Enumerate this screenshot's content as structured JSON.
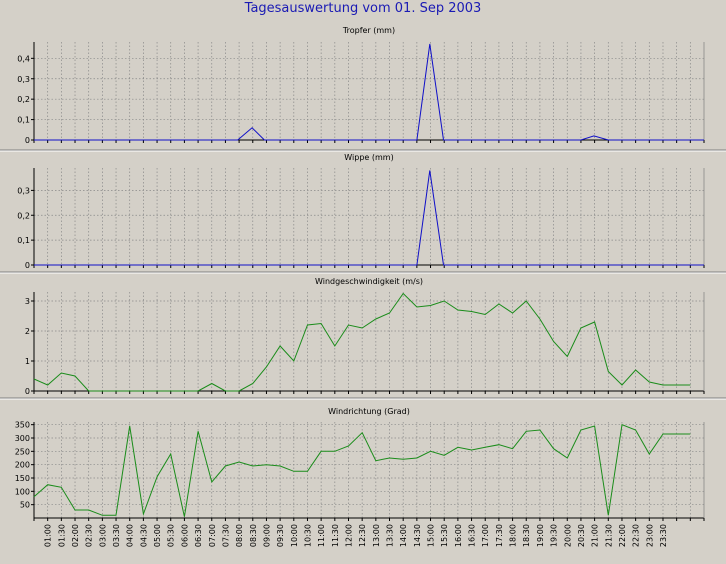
{
  "page": {
    "title": "Tagesauswertung vom 01. Sep 2003"
  },
  "colors": {
    "background": "#d4d0c8",
    "blue_series": "#1010c8",
    "green_series": "#1a8c1a",
    "grid": "#888888",
    "title": "#1a1ab4"
  },
  "x_labels": [
    "01:00",
    "01:30",
    "02:00",
    "02:30",
    "03:00",
    "03:30",
    "04:00",
    "04:30",
    "05:00",
    "05:30",
    "06:00",
    "06:30",
    "07:00",
    "07:30",
    "08:00",
    "08:30",
    "09:00",
    "09:30",
    "10:00",
    "10:30",
    "11:00",
    "11:30",
    "12:00",
    "12:30",
    "13:00",
    "13:30",
    "14:00",
    "14:30",
    "15:00",
    "15:30",
    "16:00",
    "16:30",
    "17:00",
    "17:30",
    "18:00",
    "18:30",
    "19:00",
    "19:30",
    "20:00",
    "20:30",
    "21:00",
    "21:30",
    "22:00",
    "22:30",
    "23:00",
    "23:30"
  ],
  "chart_data": [
    {
      "type": "line",
      "title": "Tropfer (mm)",
      "ylim": [
        0,
        0.48
      ],
      "yticks": [
        "0",
        "0,1",
        "0,2",
        "0,3",
        "0,4"
      ],
      "ytick_values": [
        0,
        0.1,
        0.2,
        0.3,
        0.4
      ],
      "grid": true,
      "series": [
        {
          "color": "#1010c8",
          "x": [
            0,
            14.9,
            15.95,
            16.85,
            28.0,
            28.95,
            29.95,
            40.0,
            40.95,
            42.0,
            49.0
          ],
          "y": [
            0,
            0,
            0.06,
            0,
            0,
            0.47,
            0,
            0,
            0.02,
            0,
            0
          ]
        }
      ]
    },
    {
      "type": "line",
      "title": "Wippe (mm)",
      "ylim": [
        0,
        0.39
      ],
      "yticks": [
        "0",
        "0,1",
        "0,2",
        "0,3"
      ],
      "ytick_values": [
        0,
        0.1,
        0.2,
        0.3
      ],
      "grid": true,
      "series": [
        {
          "color": "#1010c8",
          "x": [
            0,
            28.0,
            28.95,
            29.95,
            49.0
          ],
          "y": [
            0,
            0,
            0.38,
            0,
            0
          ]
        }
      ]
    },
    {
      "type": "line",
      "title": "Windgeschwindigkeit (m/s)",
      "ylim": [
        0,
        3.3
      ],
      "yticks": [
        "0",
        "1",
        "2",
        "3"
      ],
      "ytick_values": [
        0,
        1,
        2,
        3
      ],
      "grid": true,
      "series": [
        {
          "color": "#1a8c1a",
          "x": [
            0,
            1,
            2,
            3,
            4,
            5,
            6,
            7,
            8,
            9,
            10,
            11,
            12,
            13,
            14,
            15,
            16,
            17,
            18,
            19,
            20,
            21,
            22,
            23,
            24,
            25,
            26,
            27,
            28,
            29,
            30,
            31,
            32,
            33,
            34,
            35,
            36,
            37,
            38,
            39,
            40,
            41,
            42,
            43,
            44,
            45,
            46,
            47,
            48
          ],
          "y": [
            0.4,
            0.2,
            0.6,
            0.5,
            0,
            0,
            0,
            0,
            0,
            0,
            0,
            0,
            0,
            0.25,
            0,
            0,
            0.25,
            0.8,
            1.5,
            1.0,
            2.2,
            2.25,
            1.5,
            2.2,
            2.1,
            2.4,
            2.6,
            3.25,
            2.8,
            2.85,
            3.0,
            2.7,
            2.65,
            2.55,
            2.9,
            2.6,
            3.0,
            2.4,
            1.65,
            1.15,
            2.1,
            2.3,
            0.65,
            0.2,
            0.7,
            0.3,
            0.2,
            0.2,
            0.2
          ]
        }
      ]
    },
    {
      "type": "line",
      "title": "Windrichtung (Grad)",
      "ylim": [
        0,
        360
      ],
      "yticks": [
        "50",
        "100",
        "150",
        "200",
        "250",
        "300",
        "350"
      ],
      "ytick_values": [
        50,
        100,
        150,
        200,
        250,
        300,
        350
      ],
      "grid": true,
      "series": [
        {
          "color": "#1a8c1a",
          "x": [
            0,
            1,
            2,
            3,
            4,
            5,
            6,
            7,
            8,
            9,
            10,
            11,
            12,
            13,
            14,
            15,
            16,
            17,
            18,
            19,
            20,
            21,
            22,
            23,
            24,
            25,
            26,
            27,
            28,
            29,
            30,
            31,
            32,
            33,
            34,
            35,
            36,
            37,
            38,
            39,
            40,
            41,
            42,
            43,
            44,
            45,
            46,
            47,
            48
          ],
          "y": [
            80,
            125,
            115,
            30,
            30,
            10,
            10,
            345,
            15,
            155,
            240,
            5,
            325,
            135,
            195,
            210,
            195,
            200,
            195,
            175,
            175,
            250,
            250,
            270,
            320,
            215,
            225,
            220,
            225,
            250,
            235,
            265,
            255,
            265,
            275,
            260,
            325,
            330,
            260,
            225,
            330,
            345,
            10,
            350,
            330,
            240,
            315,
            315,
            315
          ]
        }
      ]
    }
  ]
}
